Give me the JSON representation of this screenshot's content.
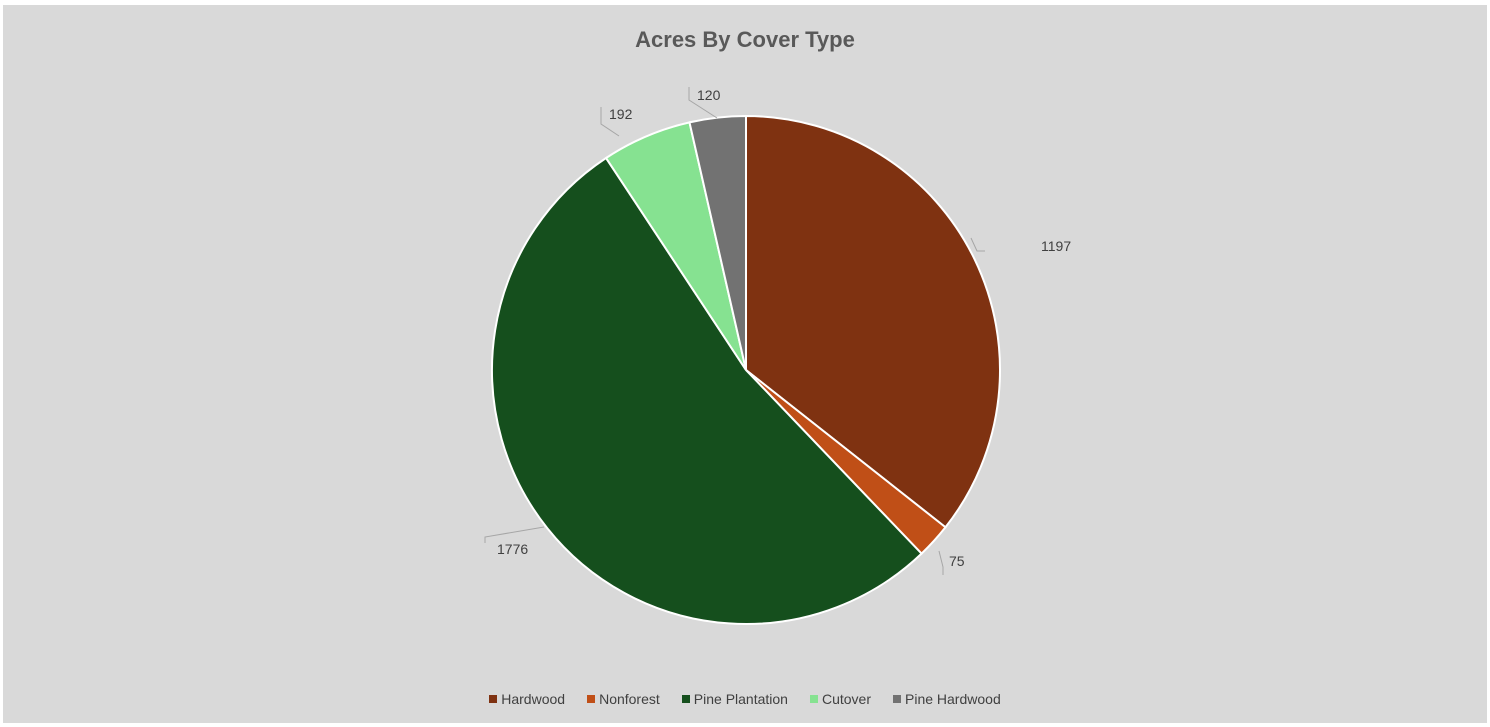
{
  "chart_data": {
    "type": "pie",
    "title": "Acres By Cover Type",
    "categories": [
      "Hardwood",
      "Nonforest",
      "Pine Plantation",
      "Cutover",
      "Pine Hardwood"
    ],
    "values": [
      1197,
      75,
      1776,
      192,
      120
    ],
    "colors": [
      "#7f3211",
      "#c04f17",
      "#154f1d",
      "#86e291",
      "#727272"
    ],
    "data_labels": [
      "1197",
      "75",
      "1776",
      "192",
      "120"
    ],
    "legend_position": "bottom",
    "start_angle": "12 o'clock, clockwise"
  }
}
